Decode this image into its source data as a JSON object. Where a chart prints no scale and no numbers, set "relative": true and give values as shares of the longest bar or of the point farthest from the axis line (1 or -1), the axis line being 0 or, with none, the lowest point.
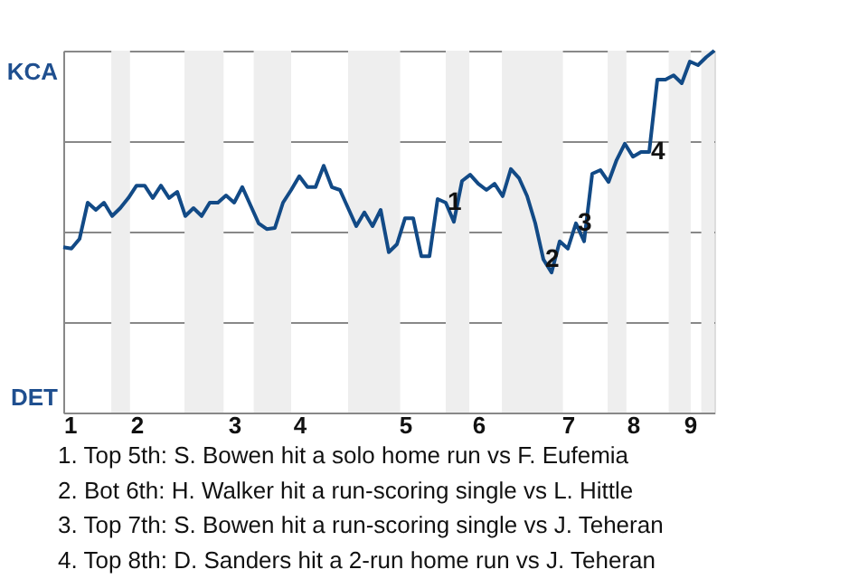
{
  "chart_data": {
    "type": "line",
    "relative": true,
    "categories": [
      "1",
      null,
      null,
      null,
      null,
      null,
      null,
      null,
      null,
      "2",
      null,
      null,
      null,
      null,
      null,
      null,
      null,
      null,
      null,
      null,
      null,
      "3",
      null,
      null,
      null,
      null,
      null,
      null,
      null,
      "4",
      null,
      null,
      null,
      null,
      null,
      null,
      null,
      null,
      null,
      null,
      null,
      null,
      "5",
      null,
      null,
      null,
      null,
      null,
      null,
      null,
      null,
      "6",
      null,
      null,
      null,
      null,
      null,
      null,
      null,
      null,
      null,
      null,
      "7",
      null,
      null,
      null,
      null,
      null,
      null,
      null,
      "8",
      null,
      null,
      null,
      null,
      null,
      null,
      "9",
      null,
      null,
      null
    ],
    "series": [
      {
        "color": "#124a86",
        "values": [
          0.457,
          0.453,
          0.48,
          0.58,
          0.56,
          0.58,
          0.543,
          0.565,
          0.593,
          0.627,
          0.627,
          0.593,
          0.627,
          0.593,
          0.61,
          0.543,
          0.565,
          0.543,
          0.58,
          0.58,
          0.6,
          0.58,
          0.623,
          0.573,
          0.523,
          0.507,
          0.51,
          0.58,
          0.615,
          0.653,
          0.623,
          0.623,
          0.682,
          0.623,
          0.615,
          0.565,
          0.515,
          0.553,
          0.515,
          0.56,
          0.443,
          0.465,
          0.537,
          0.537,
          0.432,
          0.432,
          0.59,
          0.58,
          0.527,
          0.64,
          0.657,
          0.632,
          0.615,
          0.632,
          0.598,
          0.673,
          0.648,
          0.598,
          0.523,
          0.423,
          0.387,
          0.473,
          0.453,
          0.523,
          0.473,
          0.66,
          0.67,
          0.637,
          0.698,
          0.743,
          0.707,
          0.72,
          0.72,
          0.92,
          0.92,
          0.932,
          0.91,
          0.97,
          0.96,
          0.982,
          1
        ]
      }
    ],
    "grid": "y",
    "marker": "none",
    "line_style": "solid",
    "annotations": [
      "KCA",
      "DET",
      {
        "text": "1",
        "y": 0.58
      },
      {
        "text": "2",
        "y": 0.423
      },
      {
        "text": "3",
        "y": 0.523
      },
      {
        "text": "4",
        "y": 0.72
      },
      "1. Top 5th: S. Bowen hit a solo home run vs F. Eufemia",
      "2. Bot 6th: H. Walker hit a run-scoring single vs L. Hittle",
      "3. Top 7th: S. Bowen hit a run-scoring single vs J. Teheran",
      "4. Top 8th: D. Sanders hit a 2-run home run vs J. Teheran"
    ]
  }
}
